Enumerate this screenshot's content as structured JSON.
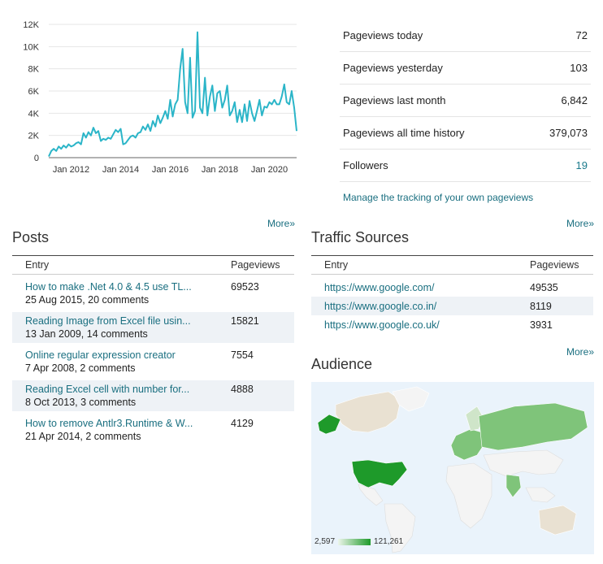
{
  "chart_data": {
    "type": "line",
    "title": "",
    "xlabel": "",
    "ylabel": "",
    "color": "#2bb5c8",
    "x_ticks": [
      "Jan 2012",
      "Jan 2014",
      "Jan 2016",
      "Jan 2018",
      "Jan 2020"
    ],
    "x_tick_years": [
      2012,
      2014,
      2016,
      2018,
      2020
    ],
    "y_ticks": [
      "0",
      "2K",
      "4K",
      "6K",
      "8K",
      "10K",
      "12K"
    ],
    "y_tick_values": [
      0,
      2000,
      4000,
      6000,
      8000,
      10000,
      12000
    ],
    "xlim": [
      2011.1,
      2021.1
    ],
    "ylim": [
      0,
      12000
    ],
    "x": [
      2011.1,
      2011.2,
      2011.3,
      2011.4,
      2011.5,
      2011.6,
      2011.7,
      2011.8,
      2011.9,
      2012.0,
      2012.1,
      2012.2,
      2012.3,
      2012.4,
      2012.5,
      2012.6,
      2012.7,
      2012.8,
      2012.9,
      2013.0,
      2013.1,
      2013.2,
      2013.3,
      2013.4,
      2013.5,
      2013.6,
      2013.7,
      2013.8,
      2013.9,
      2014.0,
      2014.1,
      2014.2,
      2014.3,
      2014.4,
      2014.5,
      2014.6,
      2014.7,
      2014.8,
      2014.9,
      2015.0,
      2015.1,
      2015.2,
      2015.3,
      2015.4,
      2015.5,
      2015.6,
      2015.7,
      2015.8,
      2015.9,
      2016.0,
      2016.1,
      2016.2,
      2016.3,
      2016.4,
      2016.5,
      2016.6,
      2016.7,
      2016.8,
      2016.9,
      2017.0,
      2017.1,
      2017.2,
      2017.3,
      2017.4,
      2017.5,
      2017.6,
      2017.7,
      2017.8,
      2017.9,
      2018.0,
      2018.1,
      2018.2,
      2018.3,
      2018.4,
      2018.5,
      2018.6,
      2018.7,
      2018.8,
      2018.9,
      2019.0,
      2019.1,
      2019.2,
      2019.3,
      2019.4,
      2019.5,
      2019.6,
      2019.7,
      2019.8,
      2019.9,
      2020.0,
      2020.1,
      2020.2,
      2020.3,
      2020.4,
      2020.5,
      2020.6,
      2020.7,
      2020.8,
      2020.9,
      2021.0,
      2021.1
    ],
    "values": [
      100,
      600,
      800,
      600,
      1000,
      800,
      1100,
      900,
      1200,
      1000,
      1100,
      1300,
      1400,
      1200,
      2200,
      1800,
      2300,
      2000,
      2700,
      2200,
      2400,
      1500,
      1700,
      1600,
      1800,
      1700,
      2100,
      2500,
      2300,
      2600,
      1200,
      1300,
      1600,
      1900,
      2000,
      1800,
      2200,
      2300,
      2800,
      2500,
      3000,
      2400,
      3300,
      2800,
      3800,
      3100,
      3600,
      4200,
      3500,
      5200,
      3700,
      4800,
      5200,
      8000,
      9800,
      5000,
      4000,
      9000,
      3600,
      4200,
      11300,
      4500,
      4000,
      7200,
      3800,
      5500,
      6500,
      4200,
      5800,
      6000,
      4500,
      5200,
      6500,
      3800,
      4200,
      5000,
      3200,
      4300,
      3200,
      4800,
      3300,
      5100,
      4000,
      3300,
      4200,
      5200,
      3800,
      4600,
      4500,
      5000,
      4800,
      5200,
      4800,
      4800,
      5500,
      6600,
      5000,
      4800,
      6000,
      4500,
      2400
    ]
  },
  "stats": {
    "today_label": "Pageviews today",
    "today": "72",
    "yesterday_label": "Pageviews yesterday",
    "yesterday": "103",
    "last_month_label": "Pageviews last month",
    "last_month": "6,842",
    "all_time_label": "Pageviews all time history",
    "all_time": "379,073",
    "followers_label": "Followers",
    "followers": "19",
    "manage_link": "Manage the tracking of your own pageviews"
  },
  "posts": {
    "more": "More»",
    "title": "Posts",
    "col_entry": "Entry",
    "col_pageviews": "Pageviews",
    "rows": [
      {
        "title": "How to make .Net 4.0 & 4.5 use TL...",
        "meta": "25 Aug 2015, 20 comments",
        "pageviews": "69523"
      },
      {
        "title": "Reading Image from Excel file usin...",
        "meta": "13 Jan 2009, 14 comments",
        "pageviews": "15821"
      },
      {
        "title": "Online regular expression creator",
        "meta": "7 Apr 2008, 2 comments",
        "pageviews": "7554"
      },
      {
        "title": "Reading Excel cell with number for...",
        "meta": "8 Oct 2013, 3 comments",
        "pageviews": "4888"
      },
      {
        "title": "How to remove Antlr3.Runtime & W...",
        "meta": "21 Apr 2014, 2 comments",
        "pageviews": "4129"
      }
    ]
  },
  "traffic": {
    "more": "More»",
    "title": "Traffic Sources",
    "col_entry": "Entry",
    "col_pageviews": "Pageviews",
    "rows": [
      {
        "source": "https://www.google.com/",
        "pageviews": "49535"
      },
      {
        "source": "https://www.google.co.in/",
        "pageviews": "8119"
      },
      {
        "source": "https://www.google.co.uk/",
        "pageviews": "3931"
      }
    ]
  },
  "audience": {
    "more": "More»",
    "title": "Audience",
    "legend_min": "2,597",
    "legend_max": "121,261",
    "colors": {
      "ocean": "#eaf3fb",
      "none": "#f4f4f4",
      "low": "#cfe5c9",
      "mid": "#7fc47a",
      "high": "#1e9a2a",
      "tan": "#e9e1d2"
    }
  }
}
